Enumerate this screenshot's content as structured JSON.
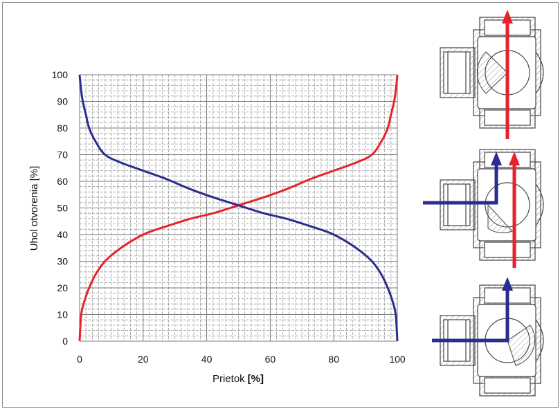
{
  "chart_data": {
    "type": "line",
    "xlabel": "Prietok",
    "xlabel_unit": "[%]",
    "ylabel": "Uhol otvorenia [%]",
    "xlim": [
      0,
      100
    ],
    "ylim": [
      0,
      100
    ],
    "x_ticks": [
      "0",
      "20",
      "40",
      "60",
      "80",
      "100"
    ],
    "y_ticks": [
      "0",
      "10",
      "20",
      "30",
      "40",
      "50",
      "60",
      "70",
      "80",
      "90",
      "100"
    ],
    "grid": true,
    "series": [
      {
        "color": "#e8222b",
        "points": [
          [
            0,
            0
          ],
          [
            0.5,
            10
          ],
          [
            1.5,
            15
          ],
          [
            3,
            20
          ],
          [
            5,
            25
          ],
          [
            8,
            30
          ],
          [
            13,
            35
          ],
          [
            20,
            40
          ],
          [
            27,
            43
          ],
          [
            35,
            46
          ],
          [
            42,
            48
          ],
          [
            50,
            51
          ],
          [
            58,
            54
          ],
          [
            65,
            57
          ],
          [
            73,
            61
          ],
          [
            80,
            64
          ],
          [
            87,
            67
          ],
          [
            92,
            70
          ],
          [
            95,
            75
          ],
          [
            97,
            80
          ],
          [
            98,
            85
          ],
          [
            99,
            90
          ],
          [
            99.6,
            95
          ],
          [
            100,
            100
          ]
        ]
      },
      {
        "color": "#2b2c8f",
        "points": [
          [
            0,
            100
          ],
          [
            0.4,
            95
          ],
          [
            1,
            90
          ],
          [
            2,
            85
          ],
          [
            3,
            80
          ],
          [
            5,
            75
          ],
          [
            8,
            70
          ],
          [
            13,
            67
          ],
          [
            20,
            64
          ],
          [
            27,
            61
          ],
          [
            35,
            57
          ],
          [
            42,
            54
          ],
          [
            50,
            51
          ],
          [
            58,
            48
          ],
          [
            65,
            46
          ],
          [
            73,
            43
          ],
          [
            80,
            40
          ],
          [
            87,
            35
          ],
          [
            92,
            30
          ],
          [
            95,
            25
          ],
          [
            97,
            20
          ],
          [
            98.5,
            15
          ],
          [
            99.5,
            10
          ],
          [
            100,
            0
          ]
        ]
      }
    ]
  },
  "valves": [
    {
      "name": "valve-top",
      "flow": "straight"
    },
    {
      "name": "valve-middle",
      "flow": "mixing"
    },
    {
      "name": "valve-bottom",
      "flow": "side"
    }
  ],
  "colors": {
    "red_arrow": "#e8222b",
    "blue_arrow": "#2b2c8f",
    "grid": "#9a9a9a"
  }
}
